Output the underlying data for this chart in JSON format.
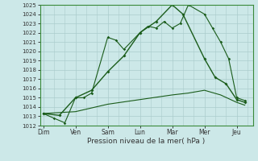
{
  "xlabel": "Pression niveau de la mer( hPa )",
  "days": [
    "Dim",
    "Ven",
    "Sam",
    "Lun",
    "Mar",
    "Mer",
    "Jeu"
  ],
  "day_positions": [
    0,
    1,
    2,
    3,
    4,
    5,
    6
  ],
  "ylim": [
    1012,
    1025
  ],
  "yticks": [
    1012,
    1013,
    1014,
    1015,
    1016,
    1017,
    1018,
    1019,
    1020,
    1021,
    1022,
    1023,
    1024,
    1025
  ],
  "bg_color": "#cce8e8",
  "grid_color": "#aacccc",
  "line_color": "#1a5c1a",
  "series1_x": [
    0.0,
    0.33,
    0.67,
    1.0,
    1.25,
    1.5,
    2.0,
    2.25,
    2.5,
    3.0,
    3.25,
    3.5,
    3.75,
    4.0,
    4.25,
    4.5,
    5.0,
    5.25,
    5.5,
    5.75,
    6.0,
    6.25
  ],
  "series1_y": [
    1013.3,
    1012.8,
    1012.3,
    1015.0,
    1015.0,
    1015.5,
    1021.5,
    1021.2,
    1020.2,
    1022.0,
    1022.7,
    1022.5,
    1023.2,
    1022.5,
    1023.0,
    1025.0,
    1024.0,
    1022.5,
    1021.0,
    1019.2,
    1015.0,
    1014.7
  ],
  "series2_x": [
    0.0,
    0.5,
    1.0,
    1.5,
    2.0,
    2.5,
    3.0,
    3.5,
    4.0,
    4.33,
    5.0,
    5.33,
    5.67,
    6.0,
    6.25
  ],
  "series2_y": [
    1013.3,
    1013.1,
    1015.0,
    1015.8,
    1017.8,
    1019.5,
    1022.0,
    1023.2,
    1025.0,
    1024.0,
    1019.2,
    1017.2,
    1016.5,
    1014.8,
    1014.5
  ],
  "series3_x": [
    0.0,
    1.0,
    2.0,
    3.0,
    4.0,
    4.5,
    5.0,
    5.5,
    6.0,
    6.25
  ],
  "series3_y": [
    1013.3,
    1013.5,
    1014.3,
    1014.8,
    1015.3,
    1015.5,
    1015.8,
    1015.3,
    1014.5,
    1014.2
  ]
}
